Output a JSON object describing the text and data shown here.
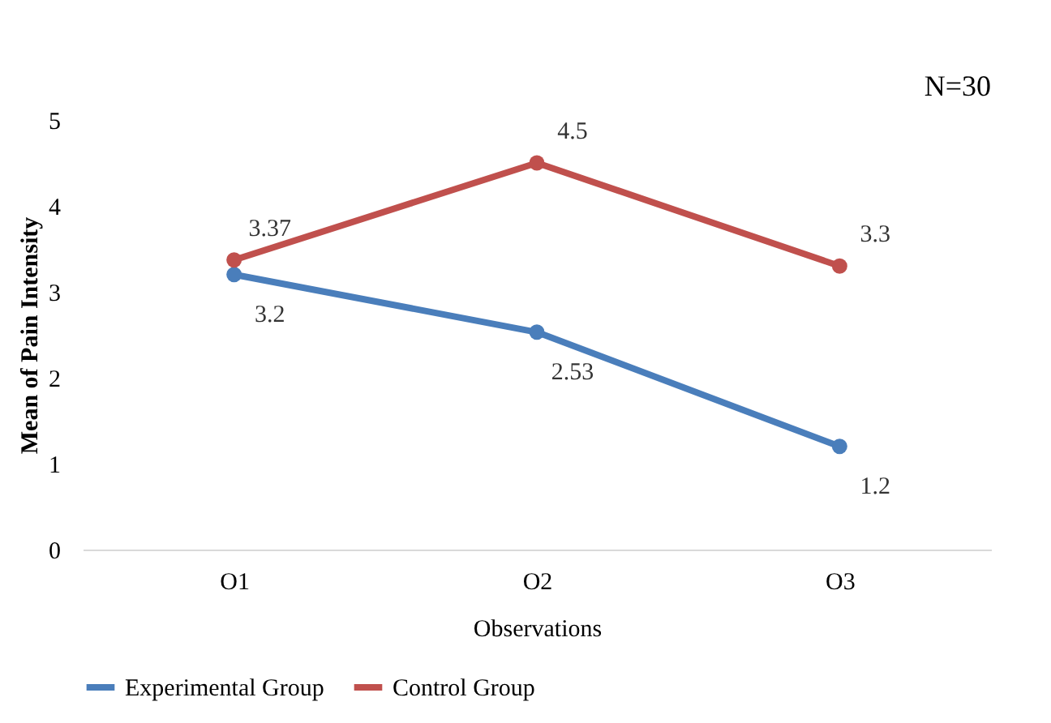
{
  "chart_data": {
    "type": "line",
    "categories": [
      "O1",
      "O2",
      "O3"
    ],
    "series": [
      {
        "name": "Experimental Group",
        "color": "#4a7ebb",
        "values": [
          3.2,
          2.53,
          1.2
        ]
      },
      {
        "name": "Control Group",
        "color": "#c0504d",
        "values": [
          3.37,
          4.5,
          3.3
        ]
      }
    ],
    "xlabel": "Observations",
    "ylabel": "Mean of Pain Intensity",
    "ylim": [
      0,
      5
    ],
    "yticks": [
      0,
      1,
      2,
      3,
      4,
      5
    ],
    "annotations": [
      "N=30"
    ],
    "data_labels": true,
    "legend": "bottom",
    "marker": "circle",
    "line_style": "solid",
    "grid": false
  }
}
